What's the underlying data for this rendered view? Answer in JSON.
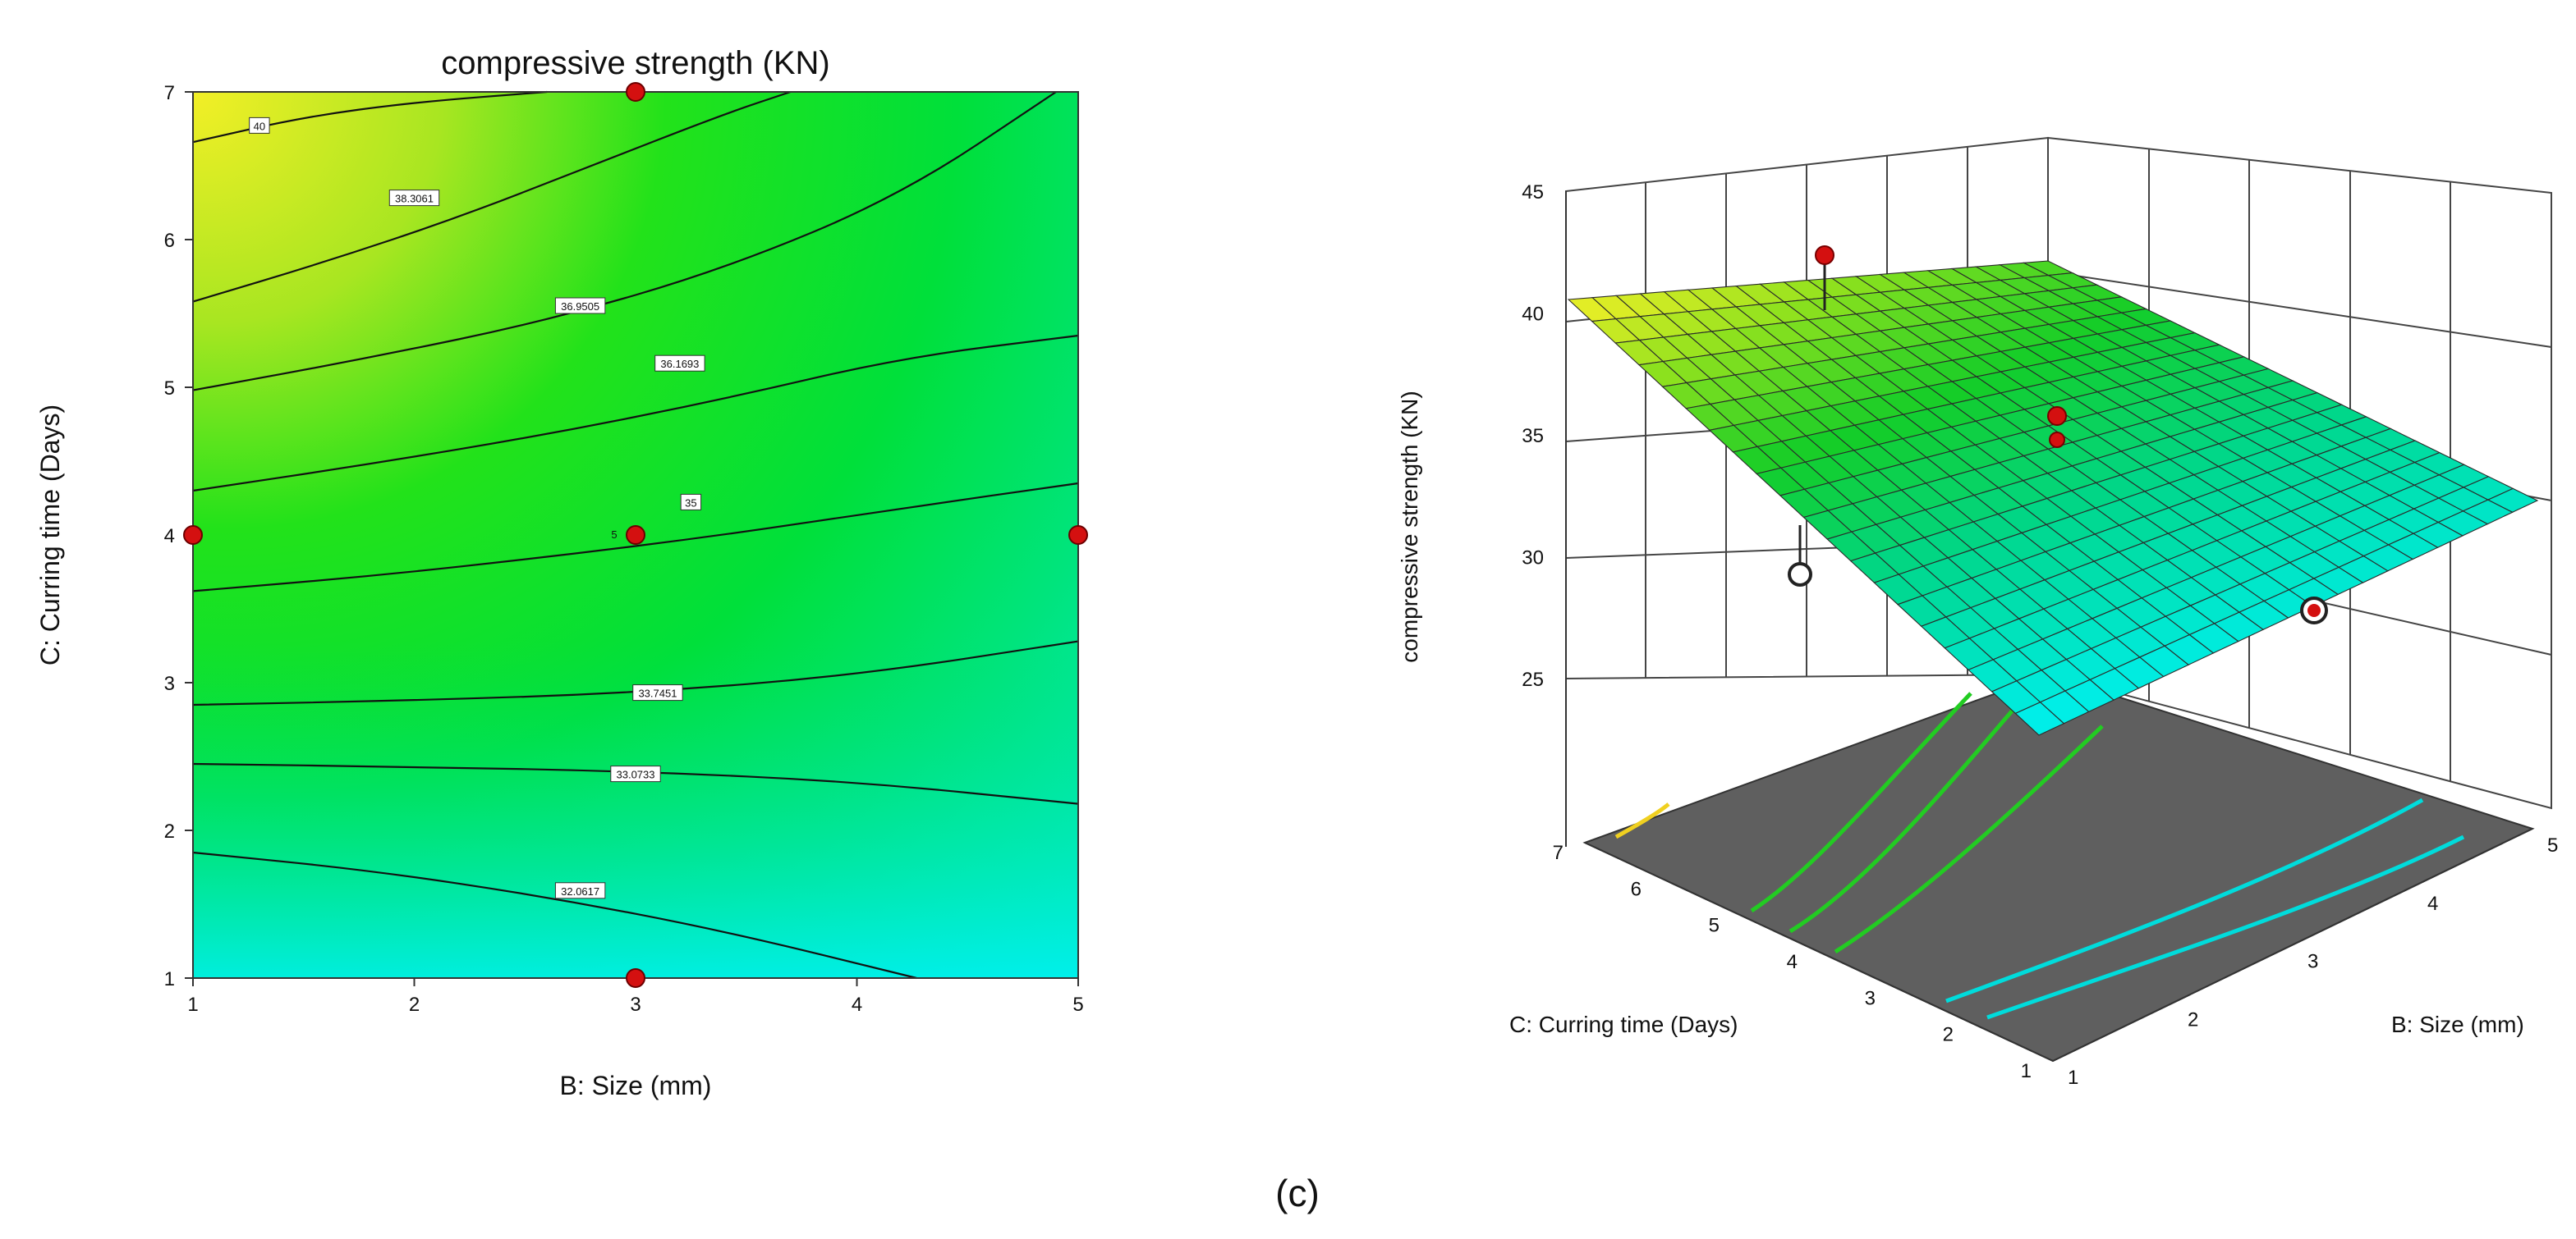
{
  "panel_label": "(c)",
  "chart_data": [
    {
      "type": "contour",
      "title": "compressive strength  (KN)",
      "xlabel": "B: Size (mm)",
      "ylabel": "C: Curring time (Days)",
      "xlim": [
        1,
        5
      ],
      "ylim": [
        1,
        7
      ],
      "x_ticks": [
        "1",
        "2",
        "3",
        "4",
        "5"
      ],
      "y_ticks": [
        "1",
        "2",
        "3",
        "4",
        "5",
        "6",
        "7"
      ],
      "contour_levels": [
        {
          "label": "40",
          "value": 40
        },
        {
          "label": "38.3061",
          "value": 38.3061
        },
        {
          "label": "36.9505",
          "value": 36.9505
        },
        {
          "label": "36.1693",
          "value": 36.1693
        },
        {
          "label": "35",
          "value": 35
        },
        {
          "label": "33.7451",
          "value": 33.7451
        },
        {
          "label": "33.0733",
          "value": 33.0733
        },
        {
          "label": "32.0617",
          "value": 32.0617
        }
      ],
      "design_points": [
        {
          "x": 3,
          "y": 7
        },
        {
          "x": 1,
          "y": 4
        },
        {
          "x": 3,
          "y": 4
        },
        {
          "x": 5,
          "y": 4
        },
        {
          "x": 3,
          "y": 1
        }
      ],
      "center_point_count_label": "5"
    },
    {
      "type": "surface3d",
      "zlabel": "compressive strength  (KN)",
      "xlabel": "B: Size (mm)",
      "ylabel": "C: Curring time (Days)",
      "z_ticks": [
        "25",
        "30",
        "35",
        "40",
        "45"
      ],
      "x_ticks": [
        "1",
        "2",
        "3",
        "4",
        "5"
      ],
      "y_ticks": [
        "1",
        "2",
        "3",
        "4",
        "5",
        "6",
        "7"
      ],
      "zlim": [
        25,
        45
      ],
      "corner_values": [
        {
          "size": 1,
          "time": 7,
          "strength": 40
        },
        {
          "size": 5,
          "time": 7,
          "strength": 36.9
        },
        {
          "size": 5,
          "time": 1,
          "strength": 31
        },
        {
          "size": 1,
          "time": 1,
          "strength": 29.5
        }
      ]
    }
  ]
}
